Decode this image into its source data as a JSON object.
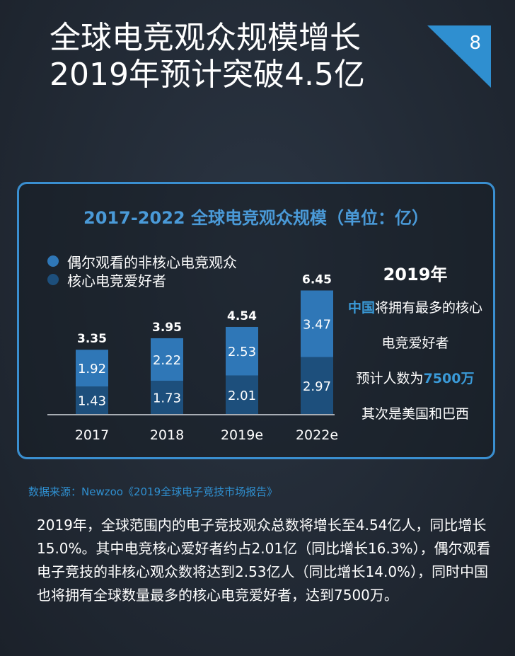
{
  "title": {
    "line1": "全球电竞观众规模增长",
    "line2": "2019年预计突破4.5亿"
  },
  "page_number": "8",
  "chart_data": {
    "type": "bar",
    "stacked": true,
    "title": "2017-2022 全球电竞观众规模（单位：亿）",
    "categories": [
      "2017",
      "2018",
      "2019e",
      "2022e"
    ],
    "series": [
      {
        "name": "核心电竞爱好者",
        "values": [
          1.43,
          1.73,
          2.01,
          2.97
        ],
        "color": "#1d4f7c"
      },
      {
        "name": "偶尔观看的非核心电竞观众",
        "values": [
          1.92,
          2.22,
          2.53,
          3.47
        ],
        "color": "#2f77b7"
      }
    ],
    "totals": [
      3.35,
      3.95,
      4.54,
      6.45
    ],
    "series_labels": [
      [
        "1.43",
        "1.73",
        "2.01",
        "2.97"
      ],
      [
        "1.92",
        "2.22",
        "2.53",
        "3.47"
      ]
    ],
    "total_labels": [
      "3.35",
      "3.95",
      "4.54",
      "6.45"
    ],
    "legend": [
      "偶尔观看的非核心电竞观众",
      "核心电竞爱好者"
    ],
    "legend_position": "top-left",
    "grid": false
  },
  "side_note": {
    "year": "2019年",
    "line1_highlight": "中国",
    "line1_rest": "将拥有最多的核心",
    "line2": "电竞爱好者",
    "line3_prefix": "预计人数为",
    "line3_value": "7500万",
    "line4": "其次是美国和巴西"
  },
  "source": "数据来源：Newzoo《2019全球电子竞技市场报告》",
  "body_text": "2019年，全球范围内的电子竞技观众总数将增长至4.54亿人，同比增长15.0%。其中电竞核心爱好者约占2.01亿（同比增长16.3%），偶尔观看电子竞技的非核心观众数将达到2.53亿人（同比增长14.0%），同时中国也将拥有全球数量最多的核心电竞爱好者，达到7500万。",
  "colors": {
    "accent": "#2f8fd0",
    "bar_core": "#1d4f7c",
    "bar_casual": "#2f77b7",
    "panel_border": "#3a8fd0"
  }
}
